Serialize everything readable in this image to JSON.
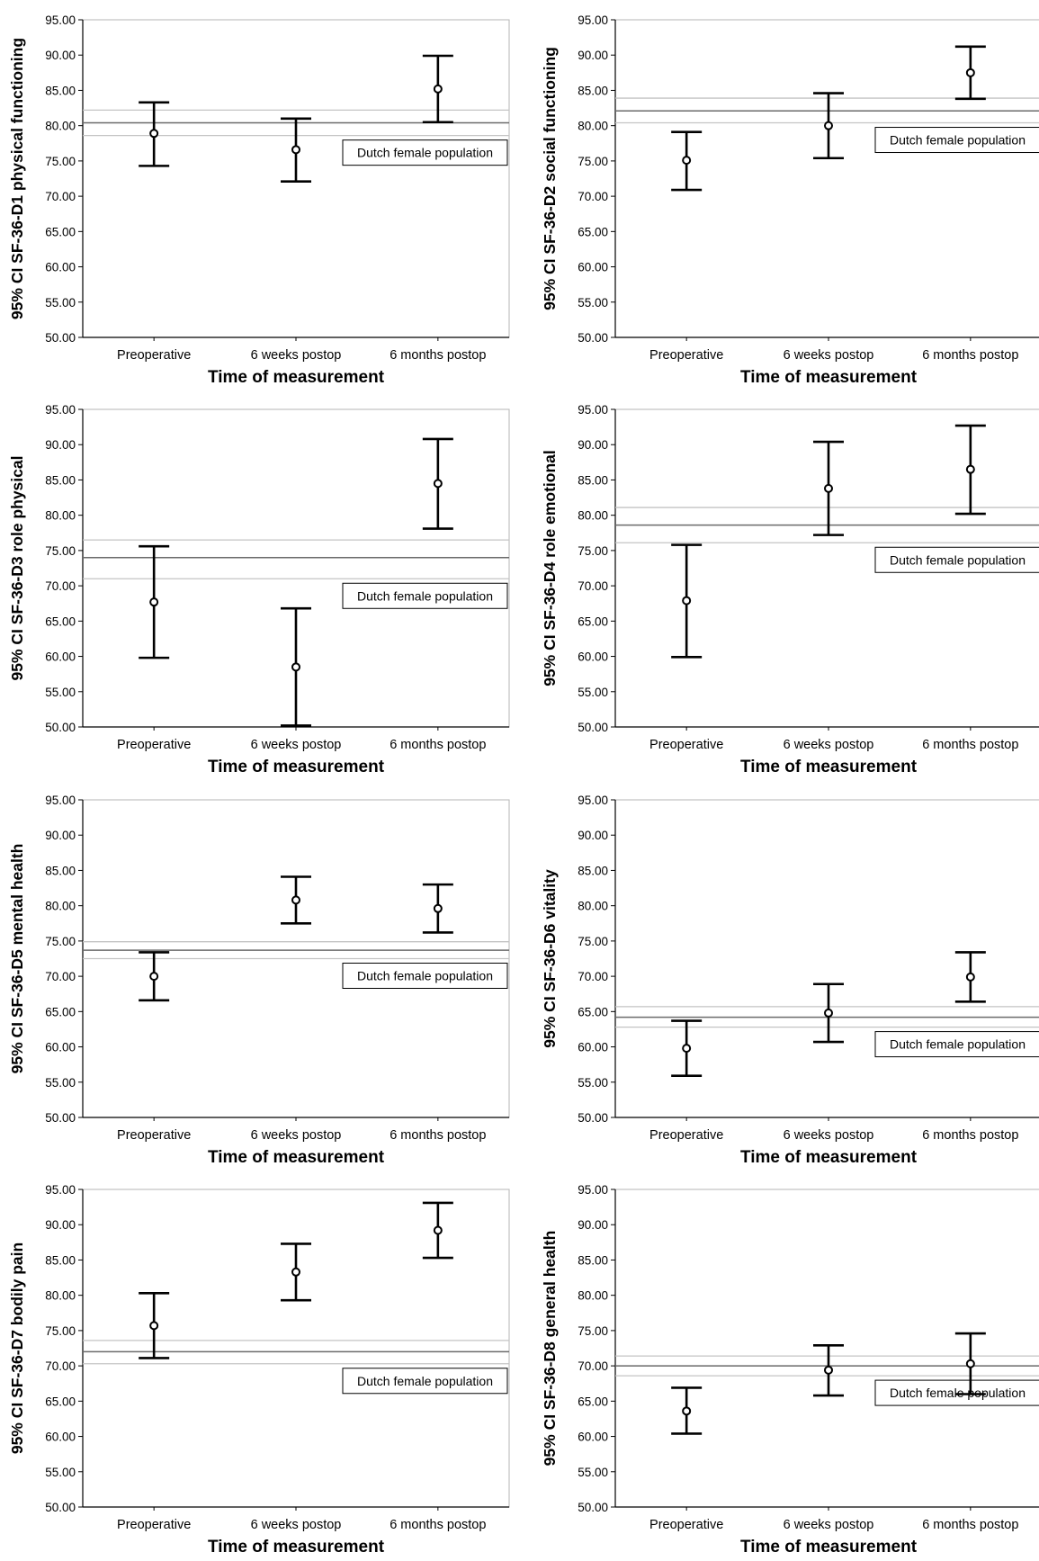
{
  "chart_data": [
    {
      "type": "errorbar",
      "ylabel": "95% CI SF-36-D1 physical functioning",
      "xlabel": "Time of measurement",
      "categories": [
        "Preoperative",
        "6 weeks postop",
        "6 months postop"
      ],
      "ylim": [
        50,
        95
      ],
      "yticks": [
        "50.00",
        "55.00",
        "60.00",
        "65.00",
        "70.00",
        "75.00",
        "80.00",
        "85.00",
        "90.00",
        "95.00"
      ],
      "series": [
        {
          "points": [
            {
              "mean": 78.9,
              "lower": 74.3,
              "upper": 83.3
            },
            {
              "mean": 76.6,
              "lower": 72.1,
              "upper": 81.0
            },
            {
              "mean": 85.2,
              "lower": 80.5,
              "upper": 89.9
            }
          ]
        }
      ],
      "reference": {
        "label": "Dutch female population",
        "mean": 80.4,
        "lower": 78.6,
        "upper": 82.2,
        "label_side": "below"
      }
    },
    {
      "type": "errorbar",
      "ylabel": "95% CI SF-36-D2 social functioning",
      "xlabel": "Time of measurement",
      "categories": [
        "Preoperative",
        "6 weeks postop",
        "6 months postop"
      ],
      "ylim": [
        50,
        95
      ],
      "yticks": [
        "50.00",
        "55.00",
        "60.00",
        "65.00",
        "70.00",
        "75.00",
        "80.00",
        "85.00",
        "90.00",
        "95.00"
      ],
      "series": [
        {
          "points": [
            {
              "mean": 75.1,
              "lower": 70.9,
              "upper": 79.1
            },
            {
              "mean": 80.0,
              "lower": 75.4,
              "upper": 84.6
            },
            {
              "mean": 87.5,
              "lower": 83.8,
              "upper": 91.2
            }
          ]
        }
      ],
      "reference": {
        "label": "Dutch female population",
        "mean": 82.1,
        "lower": 80.4,
        "upper": 83.9,
        "label_side": "below"
      }
    },
    {
      "type": "errorbar",
      "ylabel": "95% CI SF-36-D3 role physical",
      "xlabel": "Time of measurement",
      "categories": [
        "Preoperative",
        "6 weeks postop",
        "6 months postop"
      ],
      "ylim": [
        50,
        95
      ],
      "yticks": [
        "50.00",
        "55.00",
        "60.00",
        "65.00",
        "70.00",
        "75.00",
        "80.00",
        "85.00",
        "90.00",
        "95.00"
      ],
      "series": [
        {
          "points": [
            {
              "mean": 67.7,
              "lower": 59.8,
              "upper": 75.6
            },
            {
              "mean": 58.5,
              "lower": 50.2,
              "upper": 66.8
            },
            {
              "mean": 84.5,
              "lower": 78.1,
              "upper": 90.8
            }
          ]
        }
      ],
      "reference": {
        "label": "Dutch female population",
        "mean": 74.0,
        "lower": 71.0,
        "upper": 76.5,
        "label_side": "below"
      }
    },
    {
      "type": "errorbar",
      "ylabel": "95% CI SF-36-D4 role emotional",
      "xlabel": "Time of measurement",
      "categories": [
        "Preoperative",
        "6 weeks postop",
        "6 months postop"
      ],
      "ylim": [
        50,
        95
      ],
      "yticks": [
        "50.00",
        "55.00",
        "60.00",
        "65.00",
        "70.00",
        "75.00",
        "80.00",
        "85.00",
        "90.00",
        "95.00"
      ],
      "series": [
        {
          "points": [
            {
              "mean": 67.9,
              "lower": 59.9,
              "upper": 75.8
            },
            {
              "mean": 83.8,
              "lower": 77.2,
              "upper": 90.4
            },
            {
              "mean": 86.5,
              "lower": 80.2,
              "upper": 92.7
            }
          ]
        }
      ],
      "reference": {
        "label": "Dutch female population",
        "mean": 78.6,
        "lower": 76.1,
        "upper": 81.1,
        "label_side": "below"
      }
    },
    {
      "type": "errorbar",
      "ylabel": "95% CI SF-36-D5 mental health",
      "xlabel": "Time of measurement",
      "categories": [
        "Preoperative",
        "6 weeks postop",
        "6 months postop"
      ],
      "ylim": [
        50,
        95
      ],
      "yticks": [
        "50.00",
        "55.00",
        "60.00",
        "65.00",
        "70.00",
        "75.00",
        "80.00",
        "85.00",
        "90.00",
        "95.00"
      ],
      "series": [
        {
          "points": [
            {
              "mean": 70.0,
              "lower": 66.6,
              "upper": 73.4
            },
            {
              "mean": 80.8,
              "lower": 77.5,
              "upper": 84.1
            },
            {
              "mean": 79.6,
              "lower": 76.2,
              "upper": 83.0
            }
          ]
        }
      ],
      "reference": {
        "label": "Dutch female population",
        "mean": 73.7,
        "lower": 72.5,
        "upper": 74.9,
        "label_side": "below"
      }
    },
    {
      "type": "errorbar",
      "ylabel": "95% CI SF-36-D6 vitality",
      "xlabel": "Time of measurement",
      "categories": [
        "Preoperative",
        "6 weeks postop",
        "6 months postop"
      ],
      "ylim": [
        50,
        95
      ],
      "yticks": [
        "50.00",
        "55.00",
        "60.00",
        "65.00",
        "70.00",
        "75.00",
        "80.00",
        "85.00",
        "90.00",
        "95.00"
      ],
      "series": [
        {
          "points": [
            {
              "mean": 59.8,
              "lower": 55.9,
              "upper": 63.7
            },
            {
              "mean": 64.8,
              "lower": 60.7,
              "upper": 68.9
            },
            {
              "mean": 69.9,
              "lower": 66.4,
              "upper": 73.4
            }
          ]
        }
      ],
      "reference": {
        "label": "Dutch female population",
        "mean": 64.2,
        "lower": 62.8,
        "upper": 65.7,
        "label_side": "below"
      }
    },
    {
      "type": "errorbar",
      "ylabel": "95% CI SF-36-D7 bodily pain",
      "xlabel": "Time of measurement",
      "categories": [
        "Preoperative",
        "6 weeks postop",
        "6 months postop"
      ],
      "ylim": [
        50,
        95
      ],
      "yticks": [
        "50.00",
        "55.00",
        "60.00",
        "65.00",
        "70.00",
        "75.00",
        "80.00",
        "85.00",
        "90.00",
        "95.00"
      ],
      "series": [
        {
          "points": [
            {
              "mean": 75.7,
              "lower": 71.1,
              "upper": 80.3
            },
            {
              "mean": 83.3,
              "lower": 79.3,
              "upper": 87.3
            },
            {
              "mean": 89.2,
              "lower": 85.3,
              "upper": 93.1
            }
          ]
        }
      ],
      "reference": {
        "label": "Dutch female population",
        "mean": 72.0,
        "lower": 70.3,
        "upper": 73.6,
        "label_side": "below"
      }
    },
    {
      "type": "errorbar",
      "ylabel": "95% CI SF-36-D8 general health",
      "xlabel": "Time of measurement",
      "categories": [
        "Preoperative",
        "6 weeks postop",
        "6 months postop"
      ],
      "ylim": [
        50,
        95
      ],
      "yticks": [
        "50.00",
        "55.00",
        "60.00",
        "65.00",
        "70.00",
        "75.00",
        "80.00",
        "85.00",
        "90.00",
        "95.00"
      ],
      "series": [
        {
          "points": [
            {
              "mean": 63.6,
              "lower": 60.4,
              "upper": 66.9
            },
            {
              "mean": 69.4,
              "lower": 65.8,
              "upper": 72.9
            },
            {
              "mean": 70.3,
              "lower": 66.0,
              "upper": 74.6
            }
          ]
        }
      ],
      "reference": {
        "label": "Dutch female population",
        "mean": 70.0,
        "lower": 68.6,
        "upper": 71.4,
        "label_side": "below"
      }
    }
  ]
}
